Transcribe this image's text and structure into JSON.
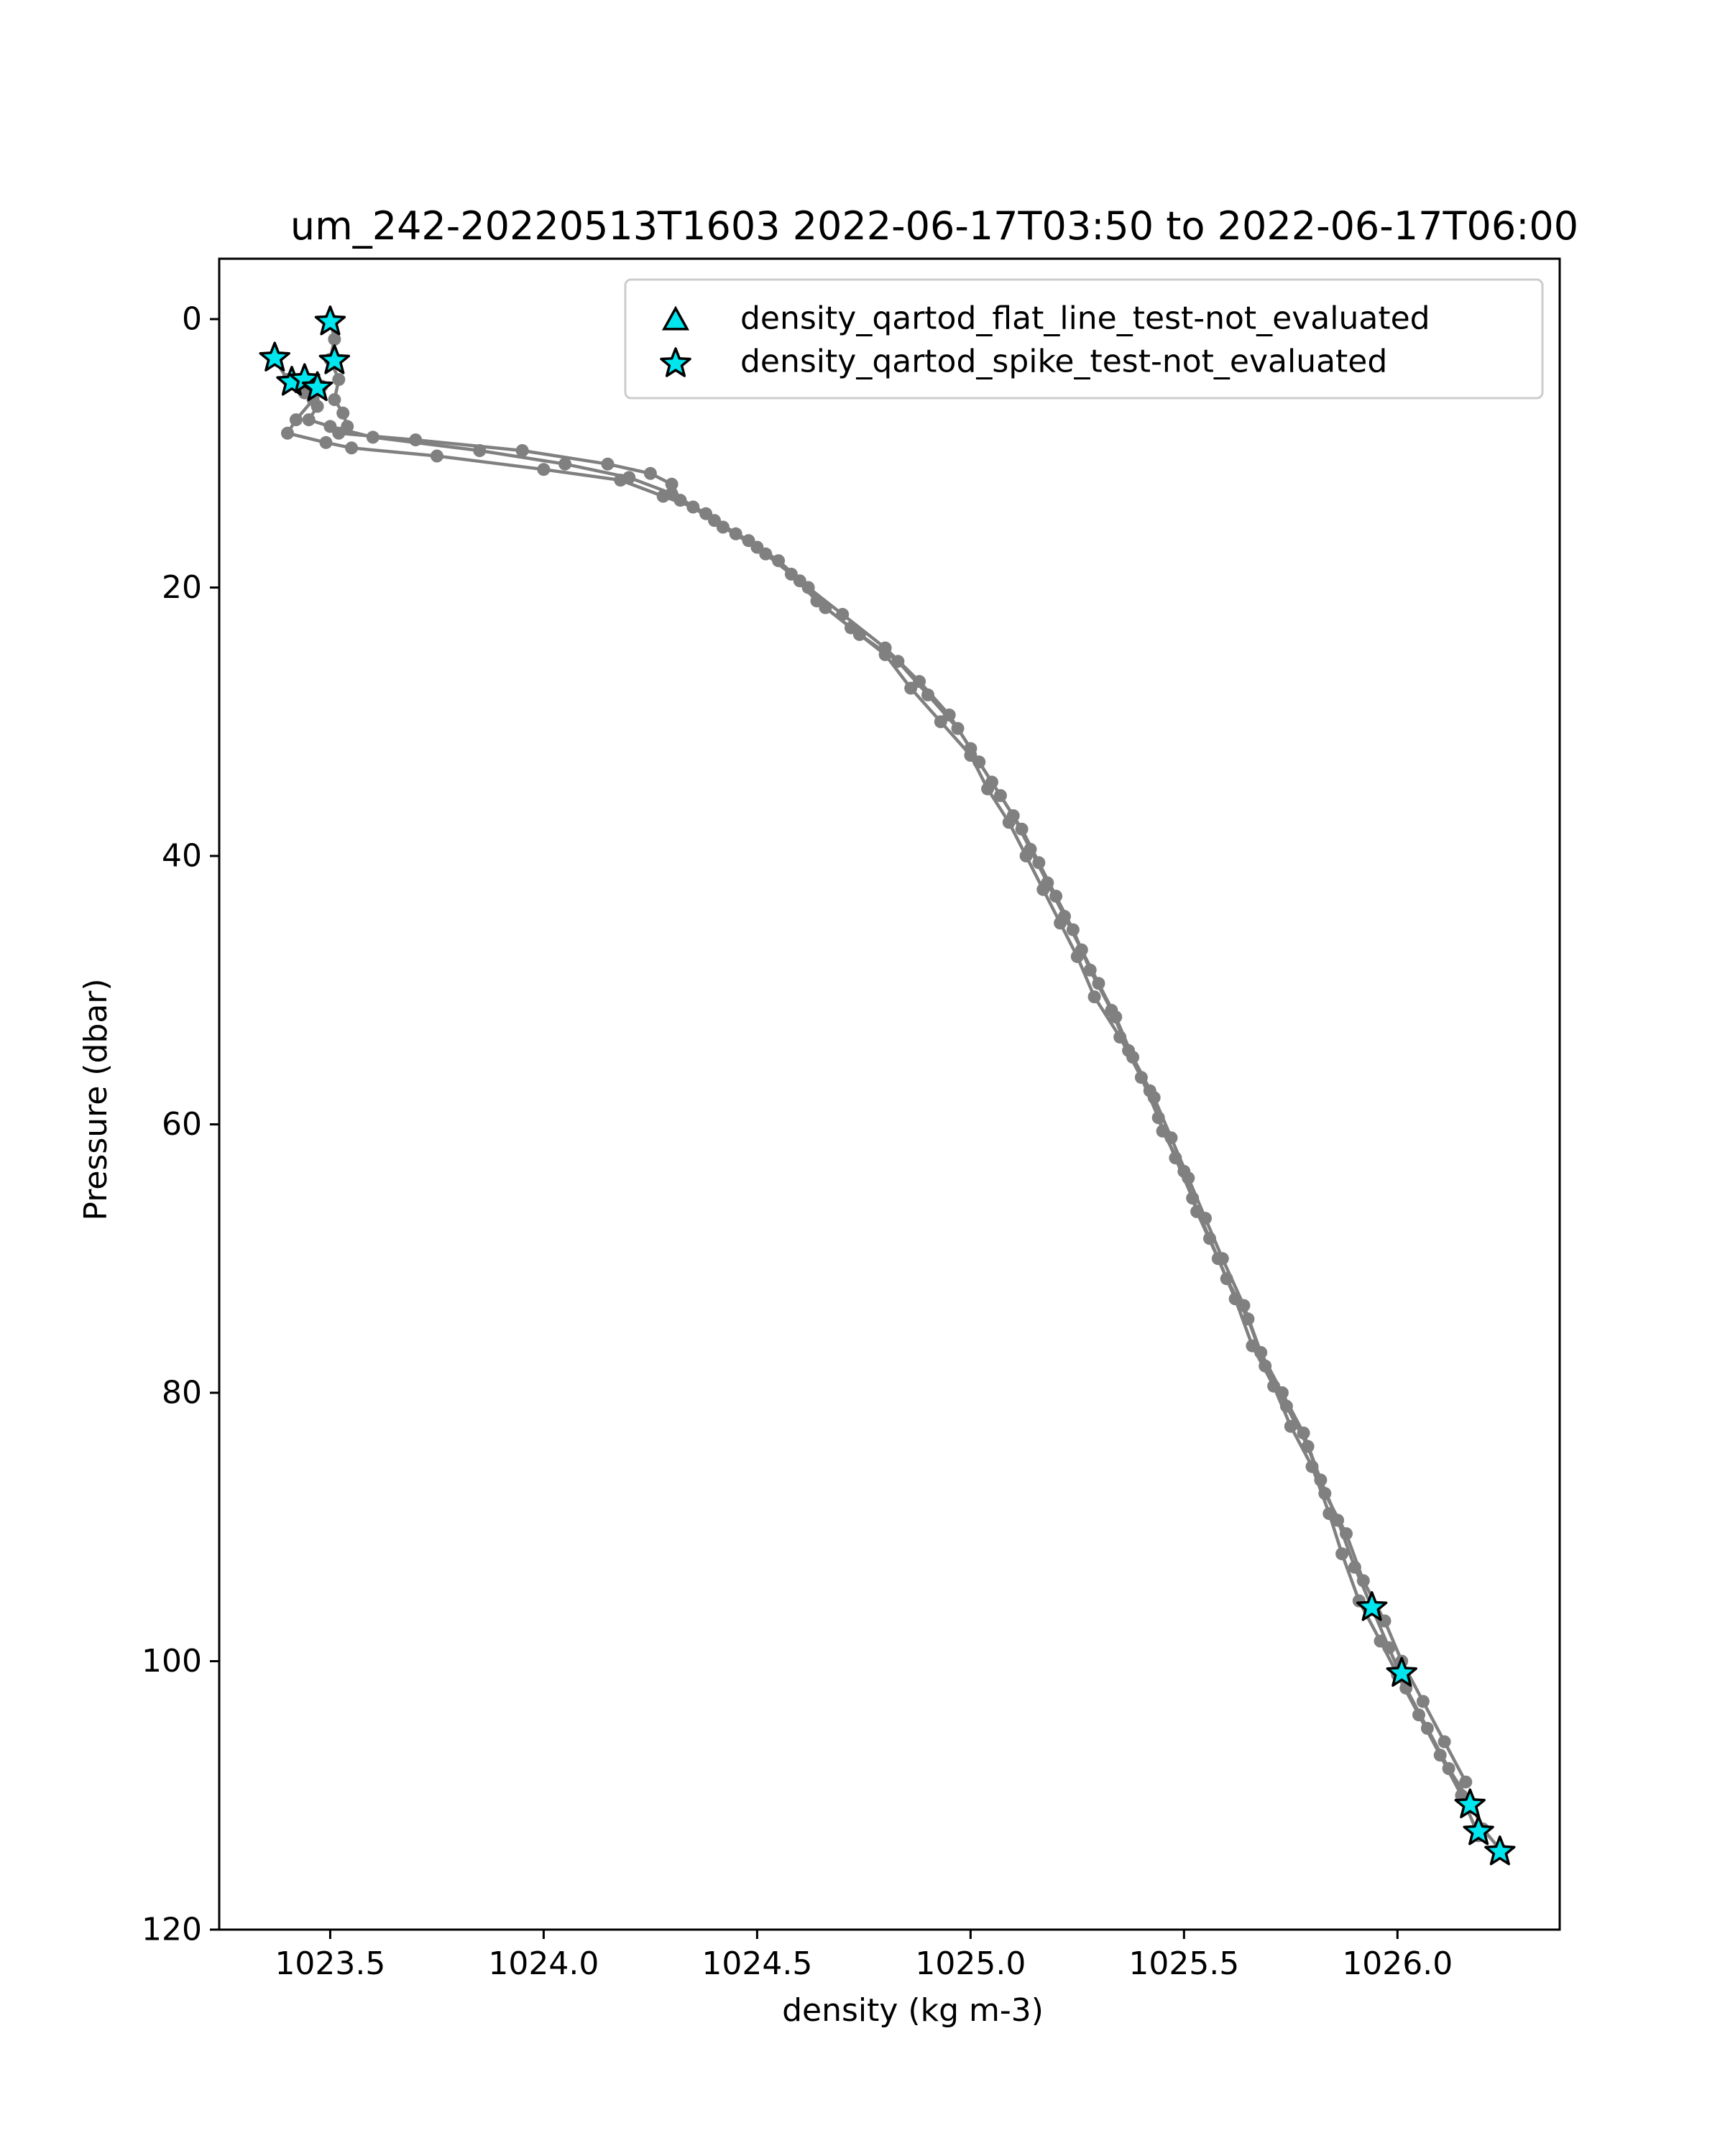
{
  "chart_data": {
    "type": "scatter",
    "title": "um_242-20220513T1603 2022-06-17T03:50 to 2022-06-17T06:00",
    "xlabel": "density (kg m-3)",
    "ylabel": "Pressure (dbar)",
    "xlim": [
      1023.24,
      1026.38
    ],
    "ylim": [
      120,
      -4.5
    ],
    "y_inverted": true,
    "grid": false,
    "legend_position": "upper-right",
    "x_ticks": [
      1023.5,
      1024.0,
      1024.5,
      1025.0,
      1025.5,
      1026.0
    ],
    "x_tick_labels": [
      "1023.5",
      "1024.0",
      "1024.5",
      "1025.0",
      "1025.5",
      "1026.0"
    ],
    "y_ticks": [
      0,
      20,
      40,
      60,
      80,
      100,
      120
    ],
    "y_tick_labels": [
      "0",
      "20",
      "40",
      "60",
      "80",
      "100",
      "120"
    ],
    "colors": {
      "profile": "#808080",
      "flag_fill": "#00e5ee",
      "flag_edge": "#000000"
    },
    "profile_series": [
      {
        "x": [
          1023.5,
          1023.51,
          1023.5,
          1023.52,
          1023.51,
          1023.53,
          1023.54,
          1023.52,
          1023.7,
          1023.95,
          1024.15,
          1024.25,
          1024.3,
          1024.32,
          1024.4,
          1024.48,
          1024.55,
          1024.62,
          1024.7,
          1024.8,
          1024.88,
          1024.95,
          1025.0,
          1025.05,
          1025.1,
          1025.14,
          1025.18,
          1025.22,
          1025.26,
          1025.3,
          1025.34,
          1025.38,
          1025.43,
          1025.47,
          1025.51,
          1025.55,
          1025.59,
          1025.64,
          1025.68,
          1025.73,
          1025.78,
          1025.82,
          1025.86,
          1025.9,
          1025.94,
          1025.98,
          1026.02,
          1026.07,
          1026.12,
          1026.17,
          1026.2,
          1026.24
        ],
        "y": [
          0.0,
          1.5,
          3.0,
          4.5,
          6.0,
          7.0,
          8.0,
          8.5,
          9.0,
          9.8,
          10.8,
          11.5,
          12.3,
          13.5,
          15.0,
          16.5,
          18.0,
          20.0,
          22.0,
          24.5,
          27.0,
          29.5,
          32.0,
          34.5,
          37.0,
          39.5,
          42.0,
          44.5,
          47.0,
          49.5,
          52.0,
          55.0,
          58.0,
          61.0,
          64.0,
          67.0,
          70.0,
          73.5,
          77.0,
          80.0,
          83.0,
          86.5,
          89.5,
          93.0,
          96.0,
          99.0,
          102.0,
          105.0,
          108.0,
          110.5,
          112.5,
          114.0
        ]
      },
      {
        "x": [
          1023.37,
          1023.4,
          1023.44,
          1023.47,
          1023.45,
          1023.5,
          1023.6,
          1023.85,
          1024.05,
          1024.2,
          1024.3,
          1024.38,
          1024.45,
          1024.52,
          1024.6,
          1024.66,
          1024.74,
          1024.83,
          1024.9,
          1024.97,
          1025.02,
          1025.07,
          1025.12,
          1025.16,
          1025.2,
          1025.24,
          1025.28,
          1025.33,
          1025.37,
          1025.42,
          1025.45,
          1025.5,
          1025.53,
          1025.58,
          1025.62,
          1025.66,
          1025.71,
          1025.75,
          1025.8,
          1025.84,
          1025.87,
          1025.91,
          1025.96,
          1026.0,
          1026.05,
          1026.1,
          1026.15,
          1026.19
        ],
        "y": [
          3.0,
          4.5,
          5.5,
          6.5,
          7.5,
          8.0,
          8.8,
          9.8,
          10.8,
          11.8,
          13.0,
          14.5,
          16.0,
          17.5,
          19.5,
          21.5,
          23.5,
          25.5,
          28.0,
          30.5,
          33.0,
          35.5,
          38.0,
          40.5,
          43.0,
          45.5,
          48.5,
          51.5,
          54.5,
          57.5,
          60.5,
          63.5,
          66.5,
          70.0,
          73.0,
          76.5,
          79.5,
          82.5,
          85.5,
          89.0,
          92.0,
          95.5,
          98.5,
          101.0,
          104.0,
          107.0,
          110.0,
          113.0
        ]
      },
      {
        "x": [
          1023.48,
          1023.46,
          1023.42,
          1023.4,
          1023.49,
          1023.55,
          1023.75,
          1024.0,
          1024.18,
          1024.28,
          1024.35,
          1024.42,
          1024.5,
          1024.58,
          1024.64,
          1024.72,
          1024.8,
          1024.86,
          1024.93,
          1025.0,
          1025.04,
          1025.09,
          1025.13,
          1025.17,
          1025.21,
          1025.25,
          1025.29,
          1025.35,
          1025.4,
          1025.44,
          1025.48,
          1025.52,
          1025.56,
          1025.6,
          1025.65,
          1025.69,
          1025.74,
          1025.79,
          1025.83,
          1025.88,
          1025.92,
          1025.97,
          1026.01,
          1026.06,
          1026.11,
          1026.16
        ],
        "y": [
          5.0,
          6.0,
          7.5,
          8.5,
          9.2,
          9.6,
          10.2,
          11.2,
          12.0,
          13.2,
          14.0,
          15.5,
          17.0,
          19.0,
          21.0,
          23.0,
          25.0,
          27.5,
          30.0,
          32.5,
          35.0,
          37.5,
          40.0,
          42.5,
          45.0,
          47.5,
          50.5,
          53.5,
          56.5,
          59.5,
          62.5,
          65.5,
          68.5,
          71.5,
          74.5,
          78.0,
          81.0,
          84.0,
          87.5,
          90.5,
          94.0,
          97.0,
          100.0,
          103.0,
          106.0,
          109.0
        ]
      }
    ],
    "series": [
      {
        "name": "density_qartod_flat_line_test-not_evaluated",
        "marker": "triangle",
        "x": [],
        "y": []
      },
      {
        "name": "density_qartod_spike_test-not_evaluated",
        "marker": "star",
        "x": [
          1023.5,
          1023.51,
          1023.37,
          1023.41,
          1023.44,
          1023.47,
          1025.94,
          1026.01,
          1026.17,
          1026.19,
          1026.24
        ],
        "y": [
          0.2,
          3.1,
          2.9,
          4.7,
          4.5,
          5.1,
          96.0,
          100.9,
          110.7,
          112.7,
          114.2
        ]
      }
    ]
  }
}
